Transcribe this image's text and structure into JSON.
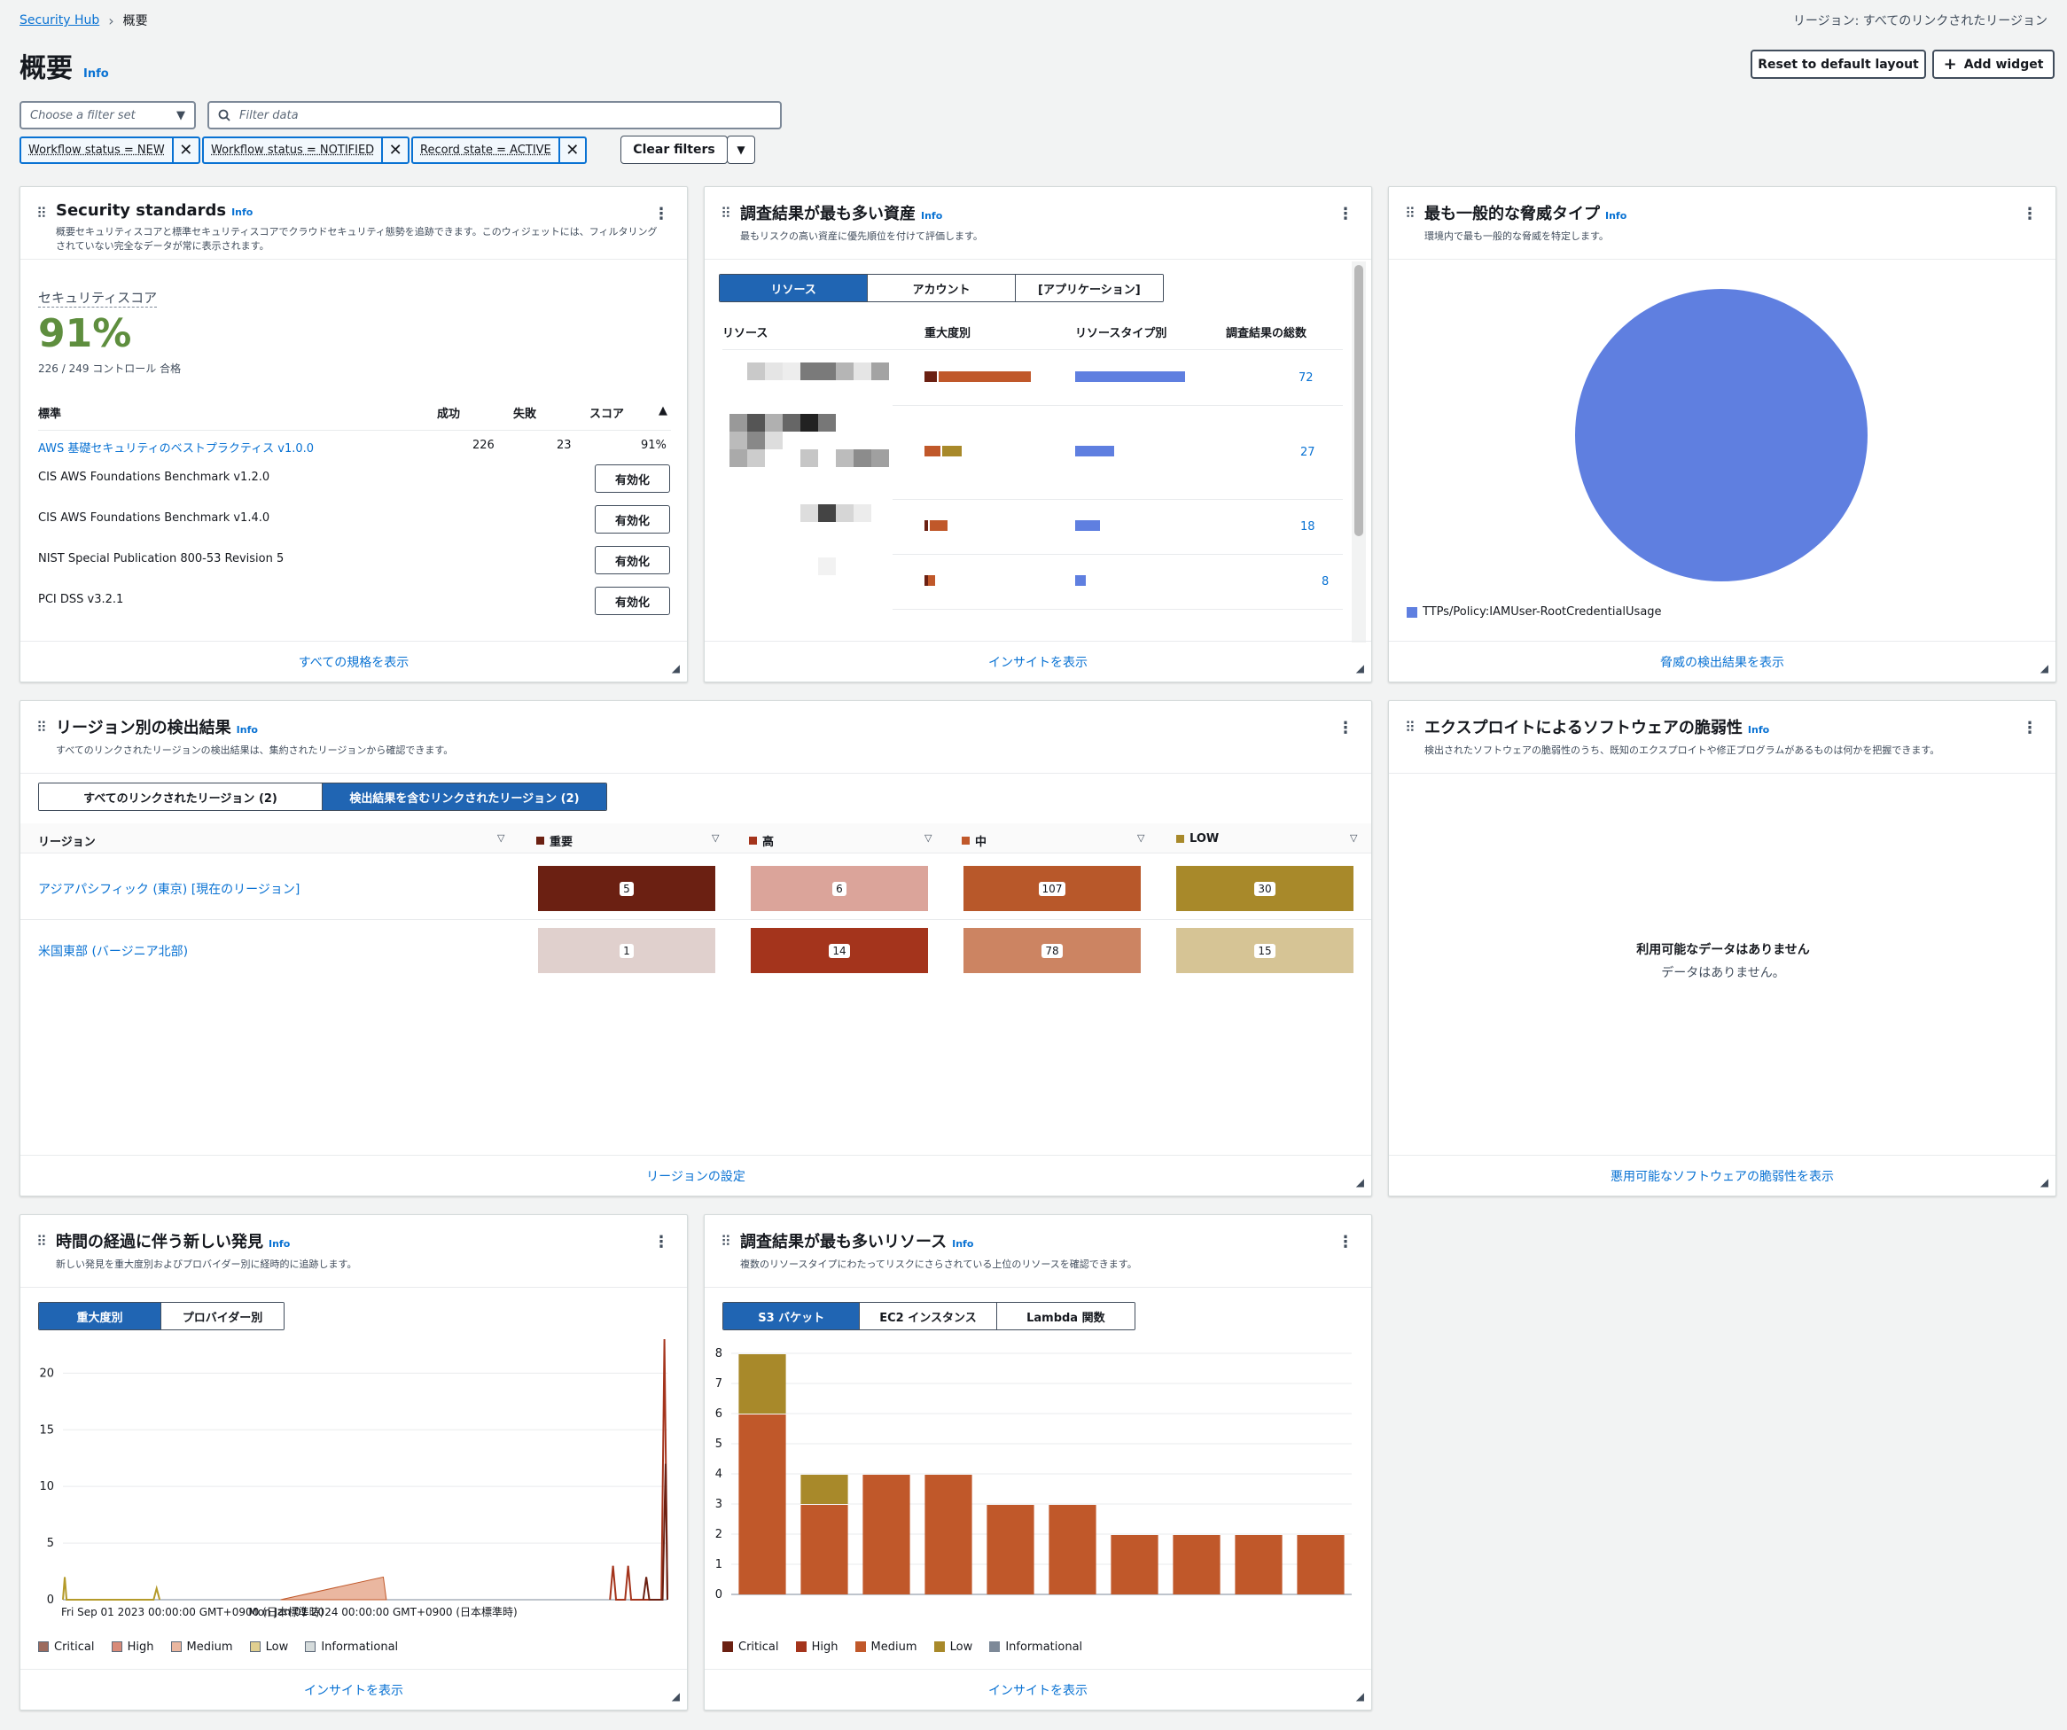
{
  "breadcrumb": {
    "root": "Security Hub",
    "current": "概要"
  },
  "region_label": "リージョン: すべてのリンクされたリージョン",
  "page": {
    "title": "概要",
    "info": "Info"
  },
  "actions": {
    "reset": "Reset to default layout",
    "add_widget": "Add widget"
  },
  "filters": {
    "filter_set_placeholder": "Choose a filter set",
    "search_placeholder": "Filter data",
    "tokens": [
      "Workflow status = NEW",
      "Workflow status = NOTIFIED",
      "Record state = ACTIVE"
    ],
    "clear": "Clear filters"
  },
  "security_standards": {
    "title": "Security standards",
    "info": "Info",
    "desc": "概要セキュリティスコアと標準セキュリティスコアでクラウドセキュリティ態勢を追跡できます。このウィジェットには、フィルタリングされていない完全なデータが常に表示されます。",
    "score_label": "セキュリティスコア",
    "score": "91%",
    "controls": "226 / 249 コントロール 合格",
    "headers": {
      "standard": "標準",
      "passed": "成功",
      "failed": "失敗",
      "score": "スコア"
    },
    "rows": [
      {
        "name": "AWS 基礎セキュリティのベストプラクティス v1.0.0",
        "passed": "226",
        "failed": "23",
        "score": "91%"
      },
      {
        "name": "CIS AWS Foundations Benchmark v1.2.0",
        "action": "有効化"
      },
      {
        "name": "CIS AWS Foundations Benchmark v1.4.0",
        "action": "有効化"
      },
      {
        "name": "NIST Special Publication 800-53 Revision 5",
        "action": "有効化"
      },
      {
        "name": "PCI DSS v3.2.1",
        "action": "有効化"
      }
    ],
    "footer": "すべての規格を表示"
  },
  "assets": {
    "title": "調査結果が最も多い資産",
    "info": "Info",
    "desc": "最もリスクの高い資産に優先順位を付けて評価します。",
    "tabs": [
      "リソース",
      "アカウント",
      "[アプリケーション]"
    ],
    "headers": {
      "resource": "リソース",
      "severity": "重大度別",
      "type": "リソースタイプ別",
      "total": "調査結果の総数"
    },
    "totals": [
      "72",
      "27",
      "18",
      "8"
    ],
    "footer": "インサイトを表示"
  },
  "threats": {
    "title": "最も一般的な脅威タイプ",
    "info": "Info",
    "desc": "環境内で最も一般的な脅威を特定します。",
    "legend": "TTPs/Policy:IAMUser-RootCredentialUsage",
    "color": "#5f7fe0",
    "footer": "脅威の検出結果を表示"
  },
  "regions": {
    "title": "リージョン別の検出結果",
    "info": "Info",
    "desc": "すべてのリンクされたリージョンの検出結果は、集約されたリージョンから確認できます。",
    "tabs": [
      "すべてのリンクされたリージョン (2)",
      "検出結果を含むリンクされたリージョン (2)"
    ],
    "columns": {
      "region": "リージョン",
      "critical": "重要",
      "high": "高",
      "medium": "中",
      "low": "LOW"
    },
    "rows": [
      {
        "name": "アジアパシフィック (東京) [現在のリージョン]",
        "critical": "5",
        "high": "6",
        "medium": "107",
        "low": "30"
      },
      {
        "name": "米国東部 (バージニア北部)",
        "critical": "1",
        "high": "14",
        "medium": "78",
        "low": "15"
      }
    ],
    "footer": "リージョンの設定"
  },
  "exploits": {
    "title": "エクスプロイトによるソフトウェアの脆弱性",
    "info": "Info",
    "desc": "検出されたソフトウェアの脆弱性のうち、既知のエクスプロイトや修正プログラムがあるものは何かを把握できます。",
    "empty_title": "利用可能なデータはありません",
    "empty_sub": "データはありません。",
    "footer": "悪用可能なソフトウェアの脆弱性を表示"
  },
  "timeline": {
    "title": "時間の経過に伴う新しい発見",
    "info": "Info",
    "desc": "新しい発見を重大度別およびプロバイダー別に経時的に追跡します。",
    "tabs": [
      "重大度別",
      "プロバイダー別"
    ],
    "legend": [
      "Critical",
      "High",
      "Medium",
      "Low",
      "Informational"
    ],
    "footer": "インサイトを表示"
  },
  "top_resources": {
    "title": "調査結果が最も多いリソース",
    "info": "Info",
    "desc": "複数のリソースタイプにわたってリスクにさらされている上位のリソースを確認できます。",
    "tabs": [
      "S3 バケット",
      "EC2 インスタンス",
      "Lambda 関数"
    ],
    "legend": [
      "Critical",
      "High",
      "Medium",
      "Low",
      "Informational"
    ],
    "footer": "インサイトを表示"
  },
  "chart_data": [
    {
      "type": "line",
      "x_ticks": [
        "Fri Sep 01 2023 00:00:00 GMT+0900 (日本標準時)",
        "Mon Jan 01 2024 00:00:00 GMT+0900 (日本標準時)"
      ],
      "ylim": [
        0,
        23
      ],
      "y_ticks": [
        0,
        5,
        10,
        15,
        20
      ],
      "legend": [
        "Critical",
        "High",
        "Medium",
        "Low",
        "Informational"
      ],
      "series": [
        {
          "name": "High",
          "color": "#a4341c",
          "points": [
            [
              0.905,
              0
            ],
            [
              0.91,
              3
            ],
            [
              0.915,
              0
            ],
            [
              0.93,
              0
            ],
            [
              0.935,
              3
            ],
            [
              0.94,
              0
            ],
            [
              0.99,
              0
            ],
            [
              0.995,
              23
            ],
            [
              1.0,
              0
            ]
          ]
        },
        {
          "name": "Medium",
          "color": "#e0a08a",
          "points": [
            [
              0.36,
              0
            ],
            [
              0.53,
              2
            ],
            [
              0.535,
              0
            ]
          ]
        },
        {
          "name": "Low",
          "color": "#b49a2a",
          "points": [
            [
              0.0,
              0
            ],
            [
              0.003,
              2
            ],
            [
              0.006,
              0
            ],
            [
              0.15,
              0
            ],
            [
              0.155,
              1
            ],
            [
              0.16,
              0
            ]
          ]
        },
        {
          "name": "Critical",
          "color": "#6b2012",
          "points": [
            [
              0.96,
              0
            ],
            [
              0.965,
              2
            ],
            [
              0.97,
              0
            ],
            [
              0.992,
              0
            ],
            [
              0.997,
              12
            ],
            [
              1.0,
              0
            ]
          ]
        }
      ]
    },
    {
      "type": "bar",
      "stacked": true,
      "ylim": [
        0,
        8
      ],
      "y_ticks": [
        0,
        1,
        2,
        3,
        4,
        5,
        6,
        7,
        8
      ],
      "legend": [
        "Critical",
        "High",
        "Medium",
        "Low",
        "Informational"
      ],
      "series": [
        {
          "name": "Medium",
          "color": "#c0582a",
          "values": [
            6,
            3,
            4,
            4,
            3,
            3,
            2,
            2,
            2,
            2
          ]
        },
        {
          "name": "Low",
          "color": "#a8892a",
          "values": [
            2,
            1,
            0,
            0,
            0,
            0,
            0,
            0,
            0,
            0
          ]
        }
      ]
    }
  ]
}
